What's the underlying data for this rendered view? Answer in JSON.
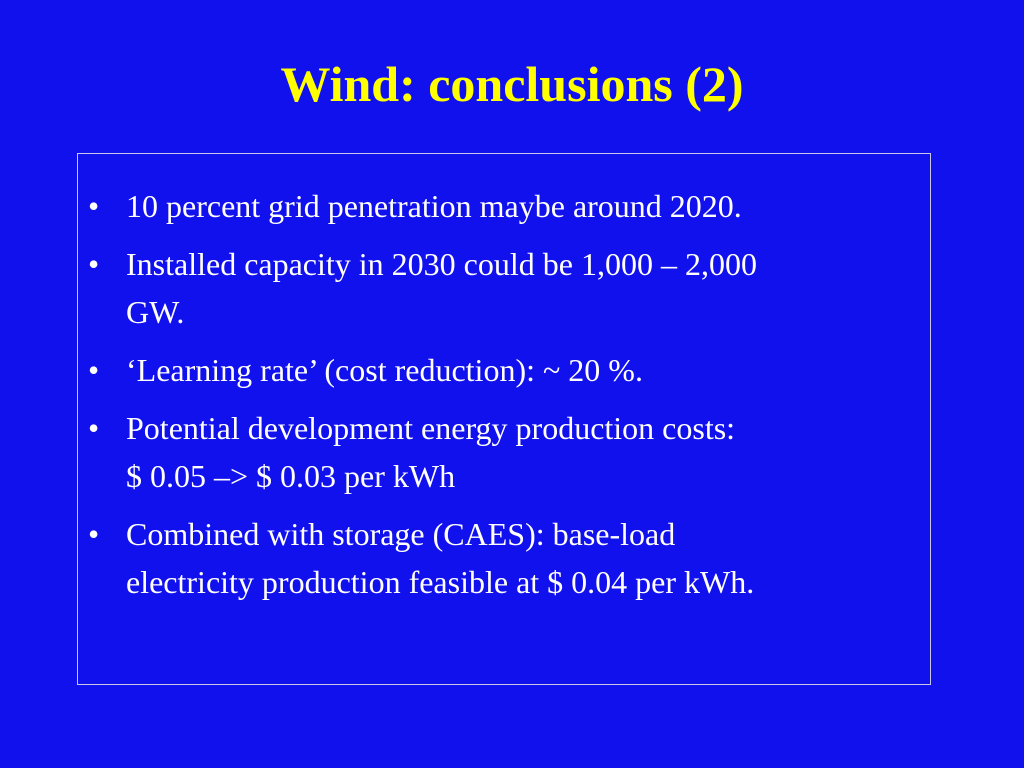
{
  "title": "Wind: conclusions (2)",
  "bullets": [
    [
      "10 percent grid penetration maybe around 2020."
    ],
    [
      "Installed capacity in 2030 could be 1,000 – 2,000",
      "GW."
    ],
    [
      "‘Learning rate’ (cost reduction): ~ 20 %."
    ],
    [
      "Potential development energy production costs:",
      "$ 0.05 –> $ 0.03 per kWh"
    ],
    [
      "Combined with storage (CAES): base-load",
      "electricity production feasible at $ 0.04 per kWh."
    ]
  ]
}
